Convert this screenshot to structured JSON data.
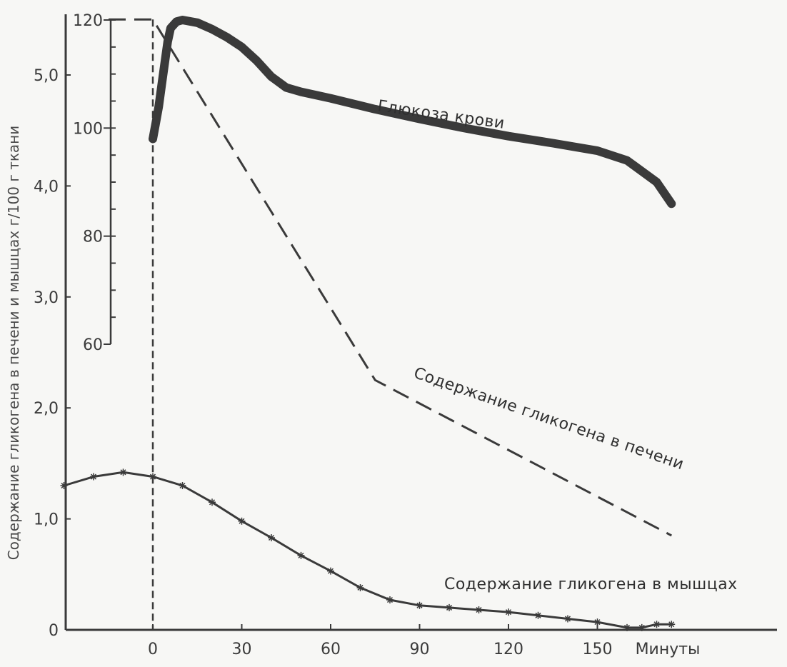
{
  "chart_data": {
    "type": "line",
    "xlabel": "Минуты",
    "ylabel": "Содержание гликогена в печени и мышцах г/100 г ткани",
    "xlim": [
      -20,
      175
    ],
    "ylim": [
      0,
      5.6
    ],
    "x_ticks": [
      0,
      30,
      60,
      90,
      120,
      150
    ],
    "y_ticks": [
      {
        "value": 0,
        "label": "0"
      },
      {
        "value": 1.0,
        "label": "1,0"
      },
      {
        "value": 2.0,
        "label": "2,0"
      },
      {
        "value": 3.0,
        "label": "3,0"
      },
      {
        "value": 4.0,
        "label": "4,0"
      },
      {
        "value": 5.0,
        "label": "5,0"
      }
    ],
    "secondary_axis": {
      "label": "",
      "ticks": [
        60,
        80,
        100,
        120
      ]
    },
    "grid": false,
    "series": [
      {
        "name": "Глюкоза крови",
        "axis": "secondary",
        "style": "thick-solid",
        "color": "#3a3a3a",
        "points": [
          [
            0,
            98
          ],
          [
            1,
            101
          ],
          [
            2,
            104
          ],
          [
            3,
            108
          ],
          [
            4,
            112
          ],
          [
            5,
            116
          ],
          [
            6,
            118.5
          ],
          [
            8,
            119.7
          ],
          [
            10,
            120
          ],
          [
            15,
            119.5
          ],
          [
            20,
            118.3
          ],
          [
            25,
            116.8
          ],
          [
            30,
            115
          ],
          [
            35,
            112.5
          ],
          [
            40,
            109.5
          ],
          [
            45,
            107.5
          ],
          [
            50,
            106.7
          ],
          [
            60,
            105.5
          ],
          [
            75,
            103.5
          ],
          [
            90,
            101.7
          ],
          [
            105,
            100
          ],
          [
            120,
            98.5
          ],
          [
            135,
            97.2
          ],
          [
            150,
            95.8
          ],
          [
            160,
            94
          ],
          [
            170,
            90
          ],
          [
            175,
            86
          ]
        ]
      },
      {
        "name": "Содержание гликогена в печени",
        "axis": "primary",
        "style": "dashed",
        "color": "#3a3a3a",
        "points": [
          [
            -15,
            5.5
          ],
          [
            0,
            5.5
          ],
          [
            75,
            2.25
          ],
          [
            175,
            0.85
          ]
        ]
      },
      {
        "name": "Содержание гликогена в мышцах",
        "axis": "primary",
        "style": "starred",
        "color": "#3a3a3a",
        "points": [
          [
            -30,
            1.3
          ],
          [
            -20,
            1.38
          ],
          [
            -10,
            1.42
          ],
          [
            0,
            1.38
          ],
          [
            10,
            1.3
          ],
          [
            20,
            1.15
          ],
          [
            30,
            0.98
          ],
          [
            40,
            0.83
          ],
          [
            50,
            0.67
          ],
          [
            60,
            0.53
          ],
          [
            70,
            0.38
          ],
          [
            80,
            0.27
          ],
          [
            90,
            0.22
          ],
          [
            100,
            0.2
          ],
          [
            110,
            0.18
          ],
          [
            120,
            0.16
          ],
          [
            130,
            0.13
          ],
          [
            140,
            0.1
          ],
          [
            150,
            0.07
          ],
          [
            160,
            0.02
          ],
          [
            165,
            0.02
          ],
          [
            170,
            0.05
          ],
          [
            175,
            0.05
          ]
        ]
      }
    ]
  }
}
